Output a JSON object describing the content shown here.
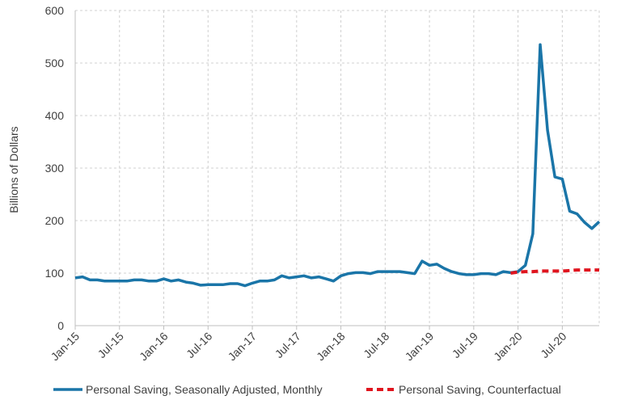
{
  "chart_data": {
    "type": "line",
    "ylabel": "Billions of Dollars",
    "ylim": [
      0,
      600
    ],
    "yticks": [
      0,
      100,
      200,
      300,
      400,
      500,
      600
    ],
    "xlim": [
      "2015-01",
      "2020-12"
    ],
    "xticks": [
      "Jan-15",
      "Jul-15",
      "Jan-16",
      "Jul-16",
      "Jan-17",
      "Jul-17",
      "Jan-18",
      "Jul-18",
      "Jan-19",
      "Jul-19",
      "Jan-20",
      "Jul-20"
    ],
    "grid": true,
    "legend_position": "bottom",
    "series": [
      {
        "name": "Personal Saving, Seasonally Adjusted, Monthly",
        "color": "#1a75a8",
        "style": "solid",
        "x": [
          "2015-01",
          "2015-02",
          "2015-03",
          "2015-04",
          "2015-05",
          "2015-06",
          "2015-07",
          "2015-08",
          "2015-09",
          "2015-10",
          "2015-11",
          "2015-12",
          "2016-01",
          "2016-02",
          "2016-03",
          "2016-04",
          "2016-05",
          "2016-06",
          "2016-07",
          "2016-08",
          "2016-09",
          "2016-10",
          "2016-11",
          "2016-12",
          "2017-01",
          "2017-02",
          "2017-03",
          "2017-04",
          "2017-05",
          "2017-06",
          "2017-07",
          "2017-08",
          "2017-09",
          "2017-10",
          "2017-11",
          "2017-12",
          "2018-01",
          "2018-02",
          "2018-03",
          "2018-04",
          "2018-05",
          "2018-06",
          "2018-07",
          "2018-08",
          "2018-09",
          "2018-10",
          "2018-11",
          "2018-12",
          "2019-01",
          "2019-02",
          "2019-03",
          "2019-04",
          "2019-05",
          "2019-06",
          "2019-07",
          "2019-08",
          "2019-09",
          "2019-10",
          "2019-11",
          "2019-12",
          "2020-01",
          "2020-02",
          "2020-03",
          "2020-04",
          "2020-05",
          "2020-06",
          "2020-07",
          "2020-08",
          "2020-09",
          "2020-10",
          "2020-11",
          "2020-12"
        ],
        "values": [
          91,
          93,
          87,
          87,
          85,
          85,
          85,
          85,
          87,
          87,
          85,
          85,
          89,
          85,
          87,
          83,
          81,
          77,
          78,
          78,
          78,
          80,
          80,
          76,
          81,
          85,
          85,
          87,
          95,
          91,
          93,
          95,
          91,
          93,
          89,
          85,
          95,
          99,
          101,
          101,
          99,
          103,
          103,
          103,
          103,
          101,
          99,
          123,
          115,
          117,
          109,
          103,
          99,
          97,
          97,
          99,
          99,
          97,
          103,
          101,
          103,
          115,
          175,
          535,
          372,
          283,
          279,
          218,
          213,
          197,
          185,
          198
        ]
      },
      {
        "name": "Personal Saving, Counterfactual",
        "color": "#e0141e",
        "style": "dashed",
        "x": [
          "2019-12",
          "2020-01",
          "2020-02",
          "2020-03",
          "2020-04",
          "2020-05",
          "2020-06",
          "2020-07",
          "2020-08",
          "2020-09",
          "2020-10",
          "2020-11",
          "2020-12"
        ],
        "values": [
          100,
          102,
          103,
          103,
          104,
          104,
          104,
          104,
          105,
          106,
          106,
          106,
          106
        ]
      }
    ]
  }
}
